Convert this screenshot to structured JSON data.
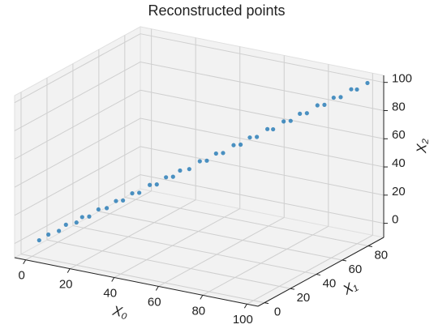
{
  "chart_data": {
    "type": "scatter3d",
    "title": "Reconstructed points",
    "x_label": "X₀",
    "y_label": "X₁",
    "z_label": "X₂",
    "xlim": [
      -5,
      105
    ],
    "ylim": [
      -5,
      92
    ],
    "zlim": [
      -10,
      105
    ],
    "xticks": [
      0,
      20,
      40,
      60,
      80,
      100
    ],
    "yticks": [
      0,
      20,
      40,
      60,
      80
    ],
    "zticks": [
      0,
      20,
      40,
      60,
      80,
      100
    ],
    "grid": true,
    "series": [
      {
        "color": "#1f77b4",
        "x": [
          2,
          5,
          8,
          10,
          13,
          15,
          17,
          20,
          22,
          25,
          27,
          30,
          32,
          35,
          37,
          40,
          42,
          44,
          47,
          50,
          52,
          55,
          57,
          60,
          62,
          65,
          67,
          70,
          72,
          75,
          77,
          80,
          82,
          85,
          87,
          90,
          92,
          95,
          97,
          100
        ],
        "y": [
          2,
          4,
          7,
          9,
          12,
          13,
          15,
          17,
          20,
          22,
          24,
          26,
          28,
          31,
          33,
          35,
          37,
          39,
          41,
          44,
          46,
          48,
          50,
          53,
          55,
          57,
          59,
          62,
          63,
          66,
          68,
          70,
          72,
          75,
          77,
          79,
          81,
          84,
          85,
          88
        ],
        "z": [
          1,
          5,
          7,
          11,
          12,
          16,
          16,
          21,
          21,
          26,
          26,
          31,
          31,
          36,
          36,
          41,
          41,
          45,
          46,
          51,
          51,
          56,
          56,
          61,
          61,
          66,
          66,
          71,
          71,
          76,
          76,
          81,
          81,
          86,
          86,
          91,
          91,
          96,
          96,
          100
        ]
      }
    ]
  }
}
